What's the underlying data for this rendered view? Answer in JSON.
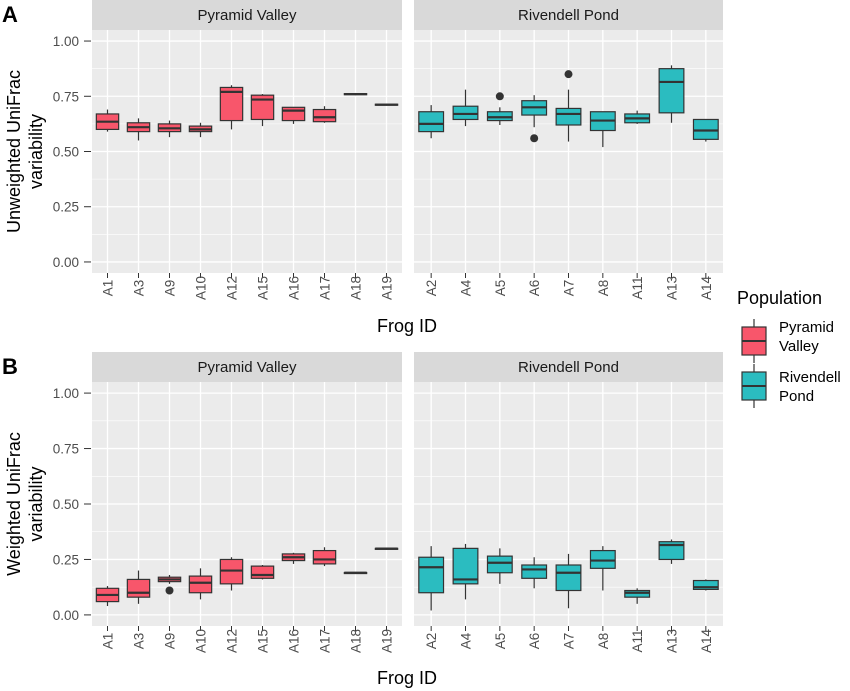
{
  "legend": {
    "title": "Population",
    "entries": [
      {
        "lines": [
          "Pyramid",
          "Valley"
        ],
        "color": "#F8566B"
      },
      {
        "lines": [
          "Rivendell",
          "Pond"
        ],
        "color": "#2BBCC0"
      }
    ]
  },
  "colors": {
    "pyramid": "#F8566B",
    "rivendell": "#2BBCC0",
    "panel_bg": "#EBEBEB",
    "strip_bg": "#D9D9D9",
    "grid": "#FFFFFF",
    "box_line": "#333333"
  },
  "chart_data": [
    {
      "type": "box",
      "panel_label": "A",
      "ylabel": [
        "Unweighted UniFrac",
        "variability"
      ],
      "xlabel": "Frog ID",
      "ylim": [
        0,
        1.0
      ],
      "yticks": [
        "0.00",
        "0.25",
        "0.50",
        "0.75",
        "1.00"
      ],
      "grid": true,
      "facets": [
        {
          "title": "Pyramid Valley",
          "population": "pyramid",
          "boxes": [
            {
              "id": "A1",
              "min": 0.59,
              "q1": 0.6,
              "median": 0.635,
              "q3": 0.67,
              "max": 0.69,
              "outliers": []
            },
            {
              "id": "A3",
              "min": 0.55,
              "q1": 0.59,
              "median": 0.61,
              "q3": 0.63,
              "max": 0.65,
              "outliers": []
            },
            {
              "id": "A9",
              "min": 0.565,
              "q1": 0.59,
              "median": 0.605,
              "q3": 0.625,
              "max": 0.64,
              "outliers": []
            },
            {
              "id": "A10",
              "min": 0.565,
              "q1": 0.59,
              "median": 0.6,
              "q3": 0.615,
              "max": 0.63,
              "outliers": []
            },
            {
              "id": "A12",
              "min": 0.6,
              "q1": 0.64,
              "median": 0.77,
              "q3": 0.79,
              "max": 0.8,
              "outliers": []
            },
            {
              "id": "A15",
              "min": 0.615,
              "q1": 0.645,
              "median": 0.735,
              "q3": 0.755,
              "max": 0.76,
              "outliers": []
            },
            {
              "id": "A16",
              "min": 0.625,
              "q1": 0.64,
              "median": 0.685,
              "q3": 0.7,
              "max": 0.7,
              "outliers": []
            },
            {
              "id": "A17",
              "min": 0.63,
              "q1": 0.635,
              "median": 0.655,
              "q3": 0.69,
              "max": 0.705,
              "outliers": []
            },
            {
              "id": "A18",
              "min": 0.755,
              "q1": 0.757,
              "median": 0.76,
              "q3": 0.762,
              "max": 0.765,
              "outliers": []
            },
            {
              "id": "A19",
              "min": 0.708,
              "q1": 0.71,
              "median": 0.712,
              "q3": 0.714,
              "max": 0.716,
              "outliers": []
            }
          ]
        },
        {
          "title": "Rivendell Pond",
          "population": "rivendell",
          "boxes": [
            {
              "id": "A2",
              "min": 0.56,
              "q1": 0.59,
              "median": 0.625,
              "q3": 0.68,
              "max": 0.71,
              "outliers": []
            },
            {
              "id": "A4",
              "min": 0.615,
              "q1": 0.645,
              "median": 0.67,
              "q3": 0.705,
              "max": 0.78,
              "outliers": []
            },
            {
              "id": "A5",
              "min": 0.62,
              "q1": 0.64,
              "median": 0.655,
              "q3": 0.68,
              "max": 0.7,
              "outliers": [
                0.75
              ]
            },
            {
              "id": "A6",
              "min": 0.61,
              "q1": 0.665,
              "median": 0.7,
              "q3": 0.73,
              "max": 0.755,
              "outliers": [
                0.56
              ]
            },
            {
              "id": "A7",
              "min": 0.545,
              "q1": 0.62,
              "median": 0.67,
              "q3": 0.695,
              "max": 0.78,
              "outliers": [
                0.85
              ]
            },
            {
              "id": "A8",
              "min": 0.52,
              "q1": 0.595,
              "median": 0.64,
              "q3": 0.68,
              "max": 0.68,
              "outliers": []
            },
            {
              "id": "A11",
              "min": 0.625,
              "q1": 0.63,
              "median": 0.65,
              "q3": 0.67,
              "max": 0.685,
              "outliers": []
            },
            {
              "id": "A13",
              "min": 0.63,
              "q1": 0.675,
              "median": 0.815,
              "q3": 0.875,
              "max": 0.89,
              "outliers": []
            },
            {
              "id": "A14",
              "min": 0.545,
              "q1": 0.555,
              "median": 0.595,
              "q3": 0.645,
              "max": 0.645,
              "outliers": []
            }
          ]
        }
      ]
    },
    {
      "type": "box",
      "panel_label": "B",
      "ylabel": [
        "Weighted UniFrac",
        "variability"
      ],
      "xlabel": "Frog ID",
      "ylim": [
        0,
        1.0
      ],
      "yticks": [
        "0.00",
        "0.25",
        "0.50",
        "0.75",
        "1.00"
      ],
      "grid": true,
      "facets": [
        {
          "title": "Pyramid Valley",
          "population": "pyramid",
          "boxes": [
            {
              "id": "A1",
              "min": 0.04,
              "q1": 0.06,
              "median": 0.09,
              "q3": 0.12,
              "max": 0.13,
              "outliers": []
            },
            {
              "id": "A3",
              "min": 0.05,
              "q1": 0.08,
              "median": 0.1,
              "q3": 0.16,
              "max": 0.2,
              "outliers": []
            },
            {
              "id": "A9",
              "min": 0.14,
              "q1": 0.15,
              "median": 0.16,
              "q3": 0.17,
              "max": 0.18,
              "outliers": [
                0.11
              ]
            },
            {
              "id": "A10",
              "min": 0.07,
              "q1": 0.1,
              "median": 0.145,
              "q3": 0.175,
              "max": 0.21,
              "outliers": []
            },
            {
              "id": "A12",
              "min": 0.11,
              "q1": 0.14,
              "median": 0.2,
              "q3": 0.25,
              "max": 0.26,
              "outliers": []
            },
            {
              "id": "A15",
              "min": 0.16,
              "q1": 0.165,
              "median": 0.18,
              "q3": 0.22,
              "max": 0.225,
              "outliers": []
            },
            {
              "id": "A16",
              "min": 0.23,
              "q1": 0.245,
              "median": 0.26,
              "q3": 0.275,
              "max": 0.28,
              "outliers": []
            },
            {
              "id": "A17",
              "min": 0.22,
              "q1": 0.23,
              "median": 0.25,
              "q3": 0.29,
              "max": 0.305,
              "outliers": []
            },
            {
              "id": "A18",
              "min": 0.188,
              "q1": 0.189,
              "median": 0.19,
              "q3": 0.191,
              "max": 0.192,
              "outliers": []
            },
            {
              "id": "A19",
              "min": 0.297,
              "q1": 0.298,
              "median": 0.299,
              "q3": 0.3,
              "max": 0.301,
              "outliers": []
            }
          ]
        },
        {
          "title": "Rivendell Pond",
          "population": "rivendell",
          "boxes": [
            {
              "id": "A2",
              "min": 0.02,
              "q1": 0.1,
              "median": 0.215,
              "q3": 0.26,
              "max": 0.31,
              "outliers": []
            },
            {
              "id": "A4",
              "min": 0.07,
              "q1": 0.14,
              "median": 0.16,
              "q3": 0.3,
              "max": 0.32,
              "outliers": []
            },
            {
              "id": "A5",
              "min": 0.14,
              "q1": 0.19,
              "median": 0.235,
              "q3": 0.265,
              "max": 0.3,
              "outliers": []
            },
            {
              "id": "A6",
              "min": 0.12,
              "q1": 0.165,
              "median": 0.205,
              "q3": 0.225,
              "max": 0.26,
              "outliers": []
            },
            {
              "id": "A7",
              "min": 0.03,
              "q1": 0.11,
              "median": 0.19,
              "q3": 0.225,
              "max": 0.275,
              "outliers": []
            },
            {
              "id": "A8",
              "min": 0.11,
              "q1": 0.21,
              "median": 0.245,
              "q3": 0.29,
              "max": 0.31,
              "outliers": []
            },
            {
              "id": "A11",
              "min": 0.05,
              "q1": 0.08,
              "median": 0.1,
              "q3": 0.11,
              "max": 0.12,
              "outliers": []
            },
            {
              "id": "A13",
              "min": 0.23,
              "q1": 0.25,
              "median": 0.315,
              "q3": 0.33,
              "max": 0.34,
              "outliers": []
            },
            {
              "id": "A14",
              "min": 0.11,
              "q1": 0.115,
              "median": 0.125,
              "q3": 0.155,
              "max": 0.16,
              "outliers": []
            }
          ]
        }
      ]
    }
  ]
}
